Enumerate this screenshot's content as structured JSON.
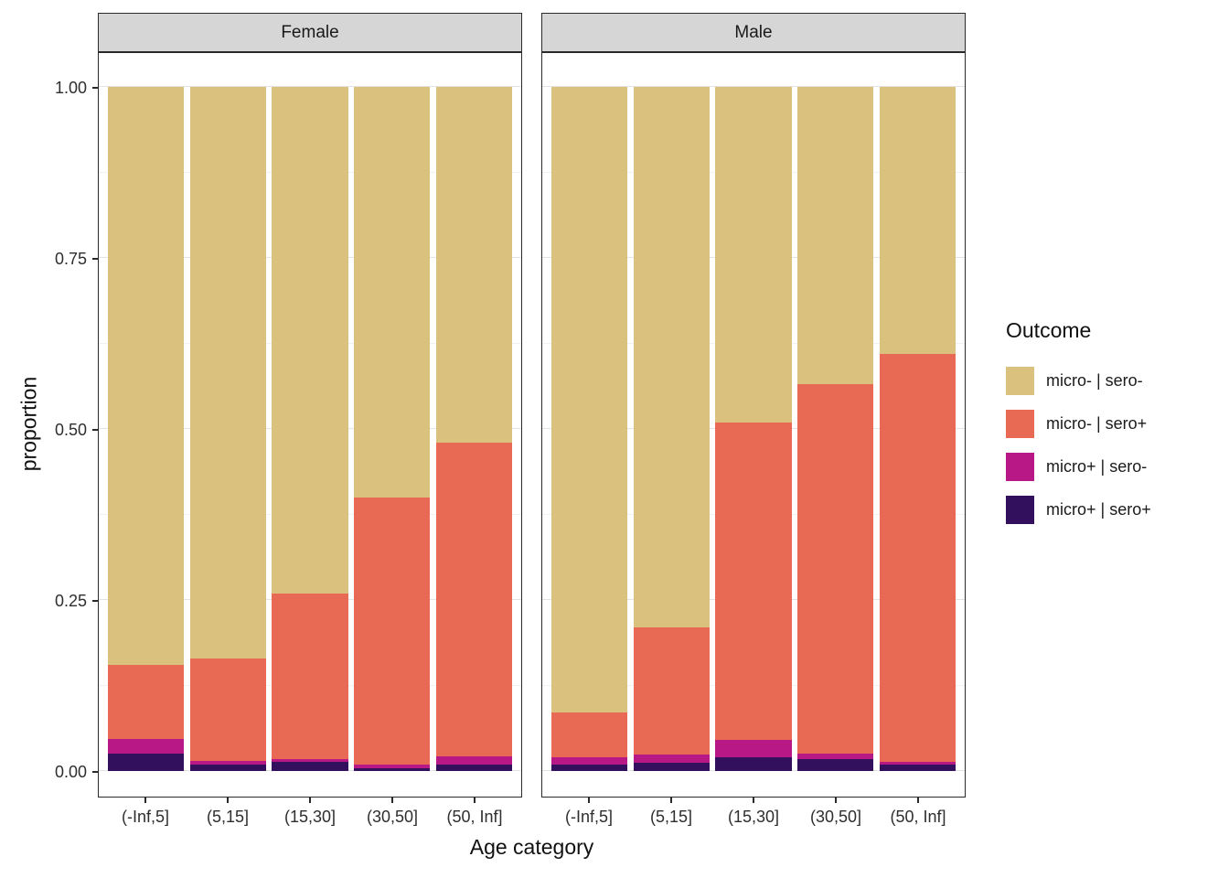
{
  "chart_data": {
    "type": "bar",
    "variant": "stacked-proportional",
    "title": "",
    "xlabel": "Age category",
    "ylabel": "proportion",
    "ylim": [
      0,
      1
    ],
    "yticks": [
      0.0,
      0.25,
      0.5,
      0.75,
      1.0
    ],
    "ytick_labels": [
      "0.00",
      "0.25",
      "0.50",
      "0.75",
      "1.00"
    ],
    "minor_yticks": [
      0.125,
      0.375,
      0.625,
      0.875
    ],
    "grid": true,
    "categories": [
      "(-Inf,5]",
      "(5,15]",
      "(15,30]",
      "(30,50]",
      "(50, Inf]"
    ],
    "legend": {
      "title": "Outcome",
      "position": "right",
      "entries": [
        {
          "label": "micro- | sero-",
          "color": "#DBC17E"
        },
        {
          "label": "micro- | sero+",
          "color": "#E96A54"
        },
        {
          "label": "micro+ | sero-",
          "color": "#B81786"
        },
        {
          "label": "micro+ | sero+",
          "color": "#33105E"
        }
      ]
    },
    "stack_order_bottom_to_top": [
      "micro+ | sero+",
      "micro+ | sero-",
      "micro- | sero+",
      "micro- | sero-"
    ],
    "facets": [
      {
        "label": "Female",
        "series": [
          {
            "name": "micro+ | sero+",
            "values": [
              0.025,
              0.01,
              0.013,
              0.004,
              0.01
            ]
          },
          {
            "name": "micro+ | sero-",
            "values": [
              0.022,
              0.005,
              0.005,
              0.006,
              0.012
            ]
          },
          {
            "name": "micro- | sero+",
            "values": [
              0.108,
              0.15,
              0.242,
              0.39,
              0.458
            ]
          },
          {
            "name": "micro- | sero-",
            "values": [
              0.845,
              0.835,
              0.74,
              0.6,
              0.52
            ]
          }
        ]
      },
      {
        "label": "Male",
        "series": [
          {
            "name": "micro+ | sero+",
            "values": [
              0.01,
              0.012,
              0.02,
              0.018,
              0.01
            ]
          },
          {
            "name": "micro+ | sero-",
            "values": [
              0.01,
              0.012,
              0.025,
              0.007,
              0.003
            ]
          },
          {
            "name": "micro- | sero+",
            "values": [
              0.065,
              0.186,
              0.465,
              0.54,
              0.597
            ]
          },
          {
            "name": "micro- | sero-",
            "values": [
              0.915,
              0.79,
              0.49,
              0.435,
              0.39
            ]
          }
        ]
      }
    ]
  }
}
